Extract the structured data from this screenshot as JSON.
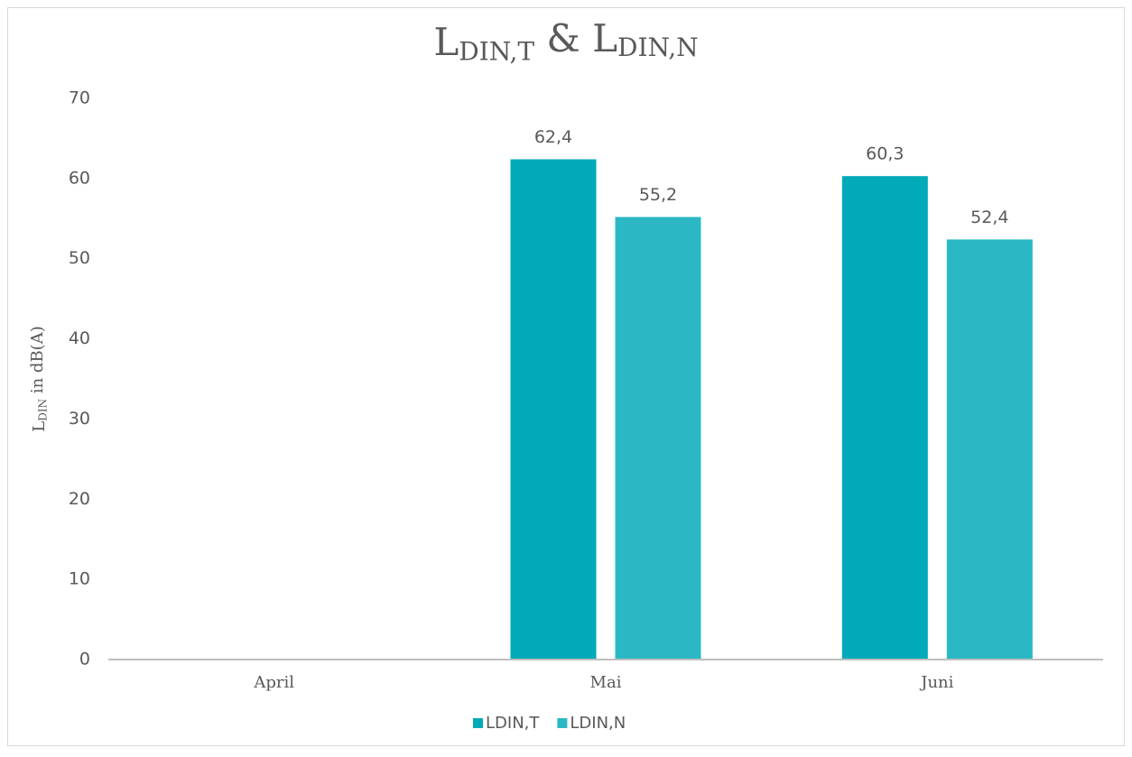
{
  "chart_data": {
    "type": "bar",
    "title_runs": [
      {
        "text": "L"
      },
      {
        "text": "DIN,T",
        "sub": true
      },
      {
        "text": " & "
      },
      {
        "text": "L"
      },
      {
        "text": "DIN,N",
        "sub": true
      }
    ],
    "y_label_runs": [
      {
        "text": "L"
      },
      {
        "text": "DIN",
        "sub": true
      },
      {
        "text": " in dB(A)"
      }
    ],
    "categories": [
      "April",
      "Mai",
      "Juni"
    ],
    "series": [
      {
        "name": "LDIN,T",
        "color": "#00aab8",
        "values": [
          null,
          62.4,
          60.3
        ],
        "value_labels": [
          null,
          "62,4",
          "60,3"
        ]
      },
      {
        "name": "LDIN,N",
        "color": "#2bb8c4",
        "values": [
          null,
          55.2,
          52.4
        ],
        "value_labels": [
          null,
          "55,2",
          "52,4"
        ]
      }
    ],
    "ylim": [
      0,
      70
    ],
    "yticks": [
      0,
      10,
      20,
      30,
      40,
      50,
      60,
      70
    ],
    "grid": false,
    "legend": "bottom"
  }
}
